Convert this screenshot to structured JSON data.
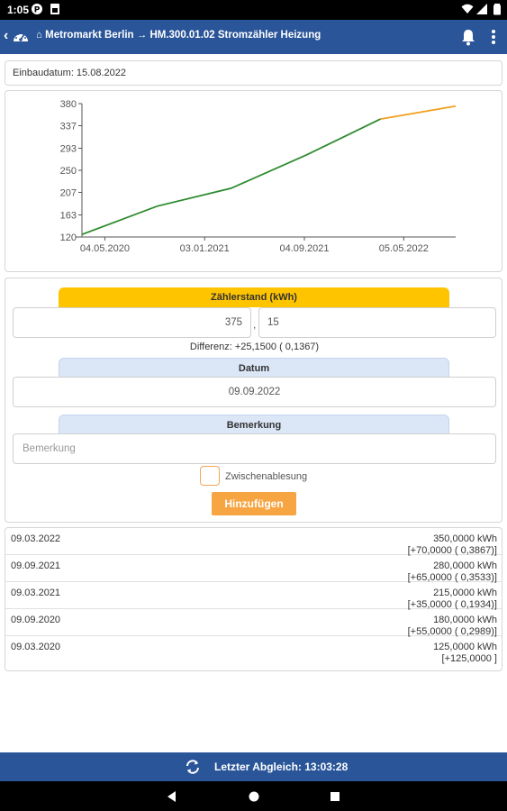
{
  "status": {
    "time": "1:05"
  },
  "appbar": {
    "back": "‹",
    "title": "⌂ Metromarkt Berlin → HM.300.01.02 Stromzähler Heizung"
  },
  "install": {
    "text": "Einbaudatum: 15.08.2022"
  },
  "chart_data": {
    "type": "line",
    "title": "",
    "xlabel": "",
    "ylabel": "",
    "y_ticks": [
      "380",
      "337",
      "293",
      "250",
      "207",
      "163",
      "120"
    ],
    "x_ticks": [
      "04.05.2020",
      "03.01.2021",
      "04.09.2021",
      "05.05.2022"
    ],
    "ylim": [
      120,
      380
    ],
    "grid": false,
    "series": [
      {
        "color": "#2e8b2e",
        "points": [
          [
            "2020-03-09",
            125
          ],
          [
            "2020-09-09",
            180
          ],
          [
            "2021-03-09",
            215
          ],
          [
            "2021-09-09",
            280
          ],
          [
            "2022-03-09",
            350
          ]
        ]
      },
      {
        "color": "#f2a020",
        "points": [
          [
            "2022-03-09",
            350
          ],
          [
            "2022-09-09",
            375.15
          ]
        ]
      }
    ]
  },
  "form": {
    "meter_header": "Zählerstand (kWh)",
    "meter_int": "375",
    "separator": ",",
    "meter_dec": "15",
    "difference": "Differenz: +25,1500 (    0,1367)",
    "date_header": "Datum",
    "date_value": "09.09.2022",
    "remark_header": "Bemerkung",
    "remark_placeholder": "Bemerkung",
    "interim_label": "Zwischenablesung",
    "add_button": "Hinzufügen"
  },
  "readings": [
    {
      "date": "09.03.2022",
      "value": "350,0000 kWh",
      "delta": "[+70,0000 (    0,3867)]"
    },
    {
      "date": "09.09.2021",
      "value": "280,0000 kWh",
      "delta": "[+65,0000 (    0,3533)]"
    },
    {
      "date": "09.03.2021",
      "value": "215,0000 kWh",
      "delta": "[+35,0000 (    0,1934)]"
    },
    {
      "date": "09.09.2020",
      "value": "180,0000 kWh",
      "delta": "[+55,0000 (    0,2989)]"
    },
    {
      "date": "09.03.2020",
      "value": "125,0000 kWh",
      "delta": "[+125,0000 ]"
    }
  ],
  "footer": {
    "sync_label": "Letzter Abgleich: 13:03:28"
  },
  "colors": {
    "primary": "#2a5599",
    "accent": "#ffc400",
    "button": "#f7a542"
  }
}
